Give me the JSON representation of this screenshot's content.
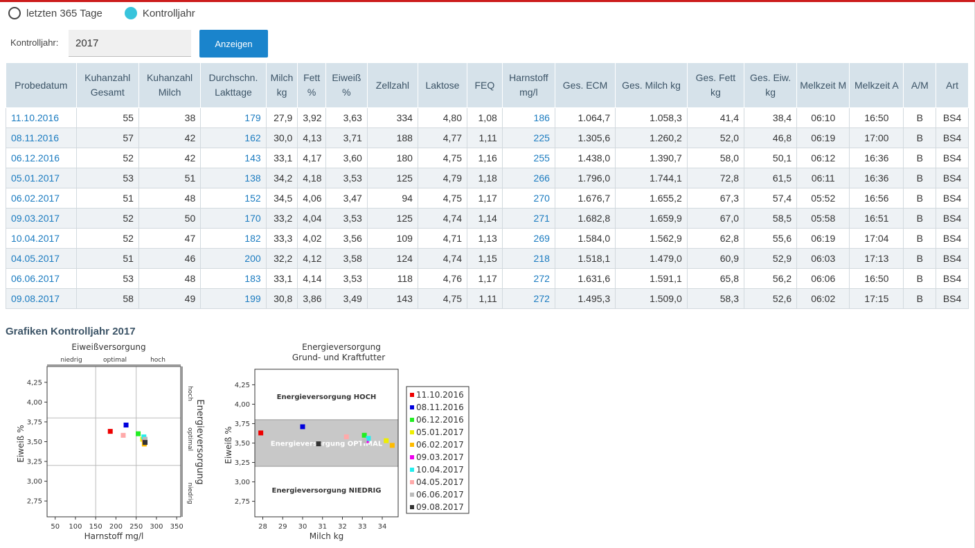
{
  "filter": {
    "option1_label": "letzten 365 Tage",
    "option2_label": "Kontrolljahr",
    "selected": "Kontrolljahr",
    "year_label": "Kontrolljahr:",
    "year_value": "2017",
    "show_button": "Anzeigen"
  },
  "colors": {
    "accent_red": "#cc1c1c",
    "button_blue": "#1a84cc",
    "radio_on": "#38c4dc",
    "header_bg": "#d6e2ea",
    "link": "#1a7bc0"
  },
  "table": {
    "columns": [
      "Probedatum",
      "Kuhanzahl Gesamt",
      "Kuhanzahl Milch",
      "Durchschn. Lakttage",
      "Milch kg",
      "Fett %",
      "Eiweiß %",
      "Zellzahl",
      "Laktose",
      "FEQ",
      "Harnstoff mg/l",
      "Ges. ECM",
      "Ges. Milch kg",
      "Ges. Fett kg",
      "Ges. Eiw. kg",
      "Melkzeit M",
      "Melkzeit A",
      "A/M",
      "Art"
    ],
    "rows": [
      [
        "11.10.2016",
        "55",
        "38",
        "179",
        "27,9",
        "3,92",
        "3,63",
        "334",
        "4,80",
        "1,08",
        "186",
        "1.064,7",
        "1.058,3",
        "41,4",
        "38,4",
        "06:10",
        "16:50",
        "B",
        "BS4"
      ],
      [
        "08.11.2016",
        "57",
        "42",
        "162",
        "30,0",
        "4,13",
        "3,71",
        "188",
        "4,77",
        "1,11",
        "225",
        "1.305,6",
        "1.260,2",
        "52,0",
        "46,8",
        "06:19",
        "17:00",
        "B",
        "BS4"
      ],
      [
        "06.12.2016",
        "52",
        "42",
        "143",
        "33,1",
        "4,17",
        "3,60",
        "180",
        "4,75",
        "1,16",
        "255",
        "1.438,0",
        "1.390,7",
        "58,0",
        "50,1",
        "06:12",
        "16:36",
        "B",
        "BS4"
      ],
      [
        "05.01.2017",
        "53",
        "51",
        "138",
        "34,2",
        "4,18",
        "3,53",
        "125",
        "4,79",
        "1,18",
        "266",
        "1.796,0",
        "1.744,1",
        "72,8",
        "61,5",
        "06:11",
        "16:36",
        "B",
        "BS4"
      ],
      [
        "06.02.2017",
        "51",
        "48",
        "152",
        "34,5",
        "4,06",
        "3,47",
        "94",
        "4,75",
        "1,17",
        "270",
        "1.676,7",
        "1.655,2",
        "67,3",
        "57,4",
        "05:52",
        "16:56",
        "B",
        "BS4"
      ],
      [
        "09.03.2017",
        "52",
        "50",
        "170",
        "33,2",
        "4,04",
        "3,53",
        "125",
        "4,74",
        "1,14",
        "271",
        "1.682,8",
        "1.659,9",
        "67,0",
        "58,5",
        "05:58",
        "16:51",
        "B",
        "BS4"
      ],
      [
        "10.04.2017",
        "52",
        "47",
        "182",
        "33,3",
        "4,02",
        "3,56",
        "109",
        "4,71",
        "1,13",
        "269",
        "1.584,0",
        "1.562,9",
        "62,8",
        "55,6",
        "06:19",
        "17:04",
        "B",
        "BS4"
      ],
      [
        "04.05.2017",
        "51",
        "46",
        "200",
        "32,2",
        "4,12",
        "3,58",
        "124",
        "4,74",
        "1,15",
        "218",
        "1.518,1",
        "1.479,0",
        "60,9",
        "52,9",
        "06:03",
        "17:13",
        "B",
        "BS4"
      ],
      [
        "06.06.2017",
        "53",
        "48",
        "183",
        "33,1",
        "4,14",
        "3,53",
        "118",
        "4,76",
        "1,17",
        "272",
        "1.631,6",
        "1.591,1",
        "65,8",
        "56,2",
        "06:06",
        "16:50",
        "B",
        "BS4"
      ],
      [
        "09.08.2017",
        "58",
        "49",
        "199",
        "30,8",
        "3,86",
        "3,49",
        "143",
        "4,75",
        "1,11",
        "272",
        "1.495,3",
        "1.509,0",
        "58,3",
        "52,6",
        "06:02",
        "17:15",
        "B",
        "BS4"
      ]
    ]
  },
  "charts_section": {
    "title": "Grafiken Kontrolljahr 2017"
  },
  "chart_data": [
    {
      "type": "scatter",
      "title": "Eiweißversorgung",
      "xlabel": "Harnstoff mg/l",
      "ylabel": "Eiweiß %",
      "right_label": "Energieversorgung",
      "xlim": [
        30,
        360
      ],
      "ylim": [
        2.55,
        4.45
      ],
      "xticks": [
        "50",
        "100",
        "150",
        "200",
        "250",
        "300",
        "350"
      ],
      "yticks": [
        "2,75",
        "3,00",
        "3,25",
        "3,50",
        "3,75",
        "4,00",
        "4,25"
      ],
      "top_zones": [
        "niedrig",
        "optimal",
        "hoch"
      ],
      "right_zones": [
        "hoch",
        "optimal",
        "niedrig"
      ],
      "zone_x": [
        150,
        250
      ],
      "zone_y": [
        3.2,
        3.8
      ],
      "points": [
        {
          "label": "11.10.2016",
          "x": 186,
          "y": 3.63,
          "color": "#ee0000"
        },
        {
          "label": "08.11.2016",
          "x": 225,
          "y": 3.71,
          "color": "#0000dd"
        },
        {
          "label": "06.12.2016",
          "x": 255,
          "y": 3.6,
          "color": "#22ee22"
        },
        {
          "label": "05.01.2017",
          "x": 266,
          "y": 3.53,
          "color": "#eeee00"
        },
        {
          "label": "06.02.2017",
          "x": 270,
          "y": 3.47,
          "color": "#ffbb00"
        },
        {
          "label": "09.03.2017",
          "x": 271,
          "y": 3.53,
          "color": "#ee00ee"
        },
        {
          "label": "10.04.2017",
          "x": 269,
          "y": 3.56,
          "color": "#22eeee"
        },
        {
          "label": "04.05.2017",
          "x": 218,
          "y": 3.58,
          "color": "#ffaaaa"
        },
        {
          "label": "06.06.2017",
          "x": 272,
          "y": 3.53,
          "color": "#bbbbbb"
        },
        {
          "label": "09.08.2017",
          "x": 272,
          "y": 3.49,
          "color": "#333333"
        }
      ]
    },
    {
      "type": "scatter",
      "title": "Energieversorgung",
      "subtitle": "Grund- und Kraftfutter",
      "xlabel": "Milch kg",
      "ylabel": "Eiweiß %",
      "xlim": [
        27.6,
        34.8
      ],
      "ylim": [
        2.55,
        4.45
      ],
      "xticks": [
        "28",
        "29",
        "30",
        "31",
        "32",
        "33",
        "34"
      ],
      "yticks": [
        "2,75",
        "3,00",
        "3,25",
        "3,50",
        "3,75",
        "4,00",
        "4,25"
      ],
      "band": [
        3.2,
        3.8
      ],
      "zone_labels": {
        "high": "Energieversorgung HOCH",
        "optimal": "Energieversorgung OPTIMAL",
        "low": "Energieversorgung NIEDRIG"
      },
      "legend_position": "right",
      "points": [
        {
          "label": "11.10.2016",
          "x": 27.9,
          "y": 3.63,
          "color": "#ee0000"
        },
        {
          "label": "08.11.2016",
          "x": 30.0,
          "y": 3.71,
          "color": "#0000dd"
        },
        {
          "label": "06.12.2016",
          "x": 33.1,
          "y": 3.6,
          "color": "#22ee22"
        },
        {
          "label": "05.01.2017",
          "x": 34.2,
          "y": 3.53,
          "color": "#eeee00"
        },
        {
          "label": "06.02.2017",
          "x": 34.5,
          "y": 3.47,
          "color": "#ffbb00"
        },
        {
          "label": "09.03.2017",
          "x": 33.2,
          "y": 3.53,
          "color": "#ee00ee"
        },
        {
          "label": "10.04.2017",
          "x": 33.3,
          "y": 3.56,
          "color": "#22eeee"
        },
        {
          "label": "04.05.2017",
          "x": 32.2,
          "y": 3.58,
          "color": "#ffaaaa"
        },
        {
          "label": "06.06.2017",
          "x": 33.1,
          "y": 3.53,
          "color": "#bbbbbb"
        },
        {
          "label": "09.08.2017",
          "x": 30.8,
          "y": 3.49,
          "color": "#333333"
        }
      ]
    }
  ]
}
